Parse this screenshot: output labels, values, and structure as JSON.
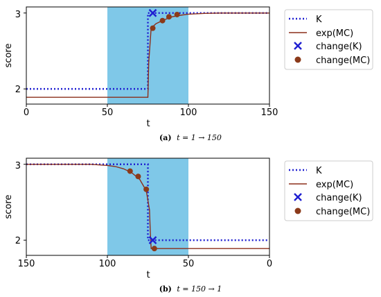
{
  "legend": {
    "k": "K",
    "exp": "exp(MC)",
    "change_k": "change(K)",
    "change_mc": "change(MC)"
  },
  "colors": {
    "k_line": "#1f1fd1",
    "mc_line": "#8b2e1a",
    "mc_marker": "#8b3a1a",
    "highlight": "#7fc8e8"
  },
  "chart_data": [
    {
      "type": "line",
      "caption": {
        "label": "(a)",
        "formula": "t = 1 → 150"
      },
      "xlabel": "t",
      "ylabel": "score",
      "x_ticks": [
        "0",
        "50",
        "100",
        "150"
      ],
      "y_ticks": [
        "2",
        "3"
      ],
      "xlim": [
        0,
        150
      ],
      "ylim": [
        1.8,
        3.08
      ],
      "x_reversed": false,
      "highlight_x": [
        50,
        100
      ],
      "series": [
        {
          "name": "K",
          "x": [
            0,
            75,
            75,
            150
          ],
          "y": [
            2.0,
            2.0,
            3.0,
            3.0
          ]
        },
        {
          "name": "exp(MC)",
          "x": [
            0,
            75,
            75.5,
            77,
            80,
            85,
            90,
            95,
            100,
            110,
            120,
            150
          ],
          "y": [
            1.89,
            1.89,
            2.35,
            2.8,
            2.86,
            2.91,
            2.95,
            2.97,
            2.985,
            2.995,
            3.0,
            3.0
          ]
        }
      ],
      "change_k": [
        {
          "x": 78,
          "y": 3.0
        }
      ],
      "change_mc": [
        {
          "x": 78,
          "y": 2.8
        },
        {
          "x": 84,
          "y": 2.9
        },
        {
          "x": 88,
          "y": 2.95
        },
        {
          "x": 93,
          "y": 2.98
        }
      ]
    },
    {
      "type": "line",
      "caption": {
        "label": "(b)",
        "formula": "t = 150 → 1"
      },
      "xlabel": "t",
      "ylabel": "score",
      "x_ticks": [
        "150",
        "100",
        "50",
        "0"
      ],
      "y_ticks": [
        "2",
        "3"
      ],
      "xlim": [
        150,
        0
      ],
      "ylim": [
        1.8,
        3.08
      ],
      "x_reversed": true,
      "highlight_x": [
        100,
        50
      ],
      "series": [
        {
          "name": "K",
          "x": [
            150,
            75,
            75,
            0
          ],
          "y": [
            3.0,
            3.0,
            2.0,
            2.0
          ]
        },
        {
          "name": "exp(MC)",
          "x": [
            150,
            110,
            100,
            95,
            90,
            85,
            80,
            76,
            74,
            73.5,
            73,
            0
          ],
          "y": [
            3.0,
            3.0,
            2.985,
            2.97,
            2.94,
            2.89,
            2.8,
            2.65,
            2.4,
            2.1,
            1.89,
            1.89
          ]
        }
      ],
      "change_k": [
        {
          "x": 72,
          "y": 2.0
        }
      ],
      "change_mc": [
        {
          "x": 86,
          "y": 2.91
        },
        {
          "x": 81,
          "y": 2.84
        },
        {
          "x": 76,
          "y": 2.67
        },
        {
          "x": 71,
          "y": 1.89
        }
      ]
    }
  ]
}
